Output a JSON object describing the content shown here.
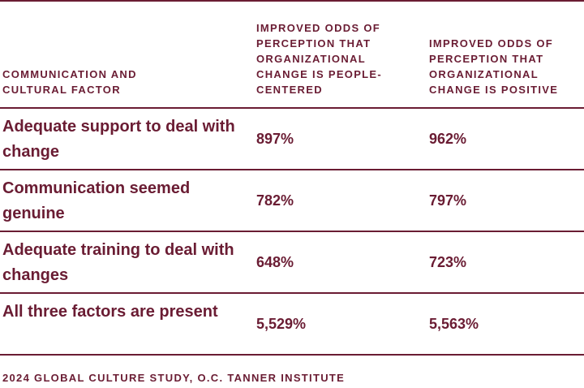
{
  "table": {
    "headers": [
      "COMMUNICATION AND CULTURAL FACTOR",
      "IMPROVED ODDS OF PERCEPTION THAT ORGANIZATIONAL CHANGE IS PEOPLE-CENTERED",
      "IMPROVED ODDS OF PERCEPTION THAT ORGANIZATIONAL CHANGE IS POSITIVE"
    ],
    "rows": [
      {
        "factor": "Adequate support to deal with change",
        "people_centered": "897%",
        "positive": "962%"
      },
      {
        "factor": "Communication seemed genuine",
        "people_centered": "782%",
        "positive": "797%"
      },
      {
        "factor": "Adequate training to deal with changes",
        "people_centered": "648%",
        "positive": "723%"
      },
      {
        "factor": "All three factors are present",
        "people_centered": "5,529%",
        "positive": "5,563%"
      }
    ]
  },
  "source": "2024 GLOBAL CULTURE STUDY, O.C. TANNER INSTITUTE",
  "colors": {
    "text": "#6a1c33",
    "rule": "#6a1c33",
    "background": "#ffffff"
  }
}
